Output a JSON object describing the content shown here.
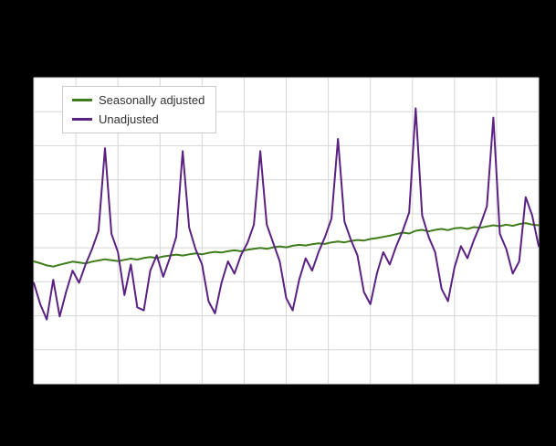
{
  "page": {
    "background_color": "#000000"
  },
  "chart_data": {
    "type": "line",
    "title": "",
    "xlabel": "",
    "ylabel": "",
    "x_tick_labels_visible": false,
    "y_tick_labels_visible": false,
    "n_points": 79,
    "ylim": [
      0,
      100
    ],
    "background": "#000000",
    "plot_background": "#ffffff",
    "grid": {
      "on": true,
      "color": "#d6d6d6",
      "h_divisions": 9,
      "v_divisions": 12
    },
    "legend": {
      "position": "top-left-inside",
      "background": "#ffffff",
      "border_color": "#cccccc"
    },
    "series": [
      {
        "name": "Seasonally adjusted",
        "color": "#3f7d1c",
        "values": [
          40.0,
          39.4,
          38.7,
          38.3,
          38.9,
          39.4,
          39.9,
          39.6,
          39.3,
          39.9,
          40.3,
          40.7,
          40.4,
          40.1,
          40.5,
          40.9,
          40.6,
          41.1,
          41.4,
          41.1,
          41.6,
          41.9,
          42.2,
          41.9,
          42.3,
          42.6,
          42.3,
          42.8,
          43.1,
          42.9,
          43.3,
          43.6,
          43.3,
          43.8,
          44.1,
          44.4,
          44.1,
          44.6,
          44.9,
          44.6,
          45.1,
          45.4,
          45.2,
          45.6,
          45.9,
          45.7,
          46.2,
          46.5,
          46.2,
          46.7,
          47.0,
          46.8,
          47.3,
          47.6,
          48.0,
          48.4,
          48.9,
          49.4,
          49.1,
          50.0,
          50.3,
          49.8,
          50.3,
          50.6,
          50.2,
          50.8,
          51.0,
          50.6,
          51.2,
          51.0,
          51.4,
          51.8,
          51.5,
          52.0,
          51.6,
          52.2,
          52.5,
          52.0,
          51.8
        ]
      },
      {
        "name": "Unadjusted",
        "color": "#5b2182",
        "values": [
          33,
          26,
          21,
          34,
          22,
          30,
          37,
          33,
          39,
          44,
          50,
          77,
          49,
          43,
          29,
          39,
          25,
          24,
          37,
          42,
          35,
          41,
          48,
          76,
          51,
          44,
          39,
          27,
          23,
          33,
          40,
          36,
          42,
          46,
          52,
          76,
          52,
          46,
          40,
          28,
          24,
          34,
          41,
          37,
          43,
          48,
          54,
          80,
          53,
          47,
          42,
          30,
          26,
          36,
          43,
          39,
          45,
          50,
          56,
          90,
          55,
          48,
          43,
          31,
          27,
          38,
          45,
          41,
          47,
          52,
          58,
          87,
          49,
          44,
          36,
          40,
          61,
          55,
          45
        ]
      }
    ]
  }
}
